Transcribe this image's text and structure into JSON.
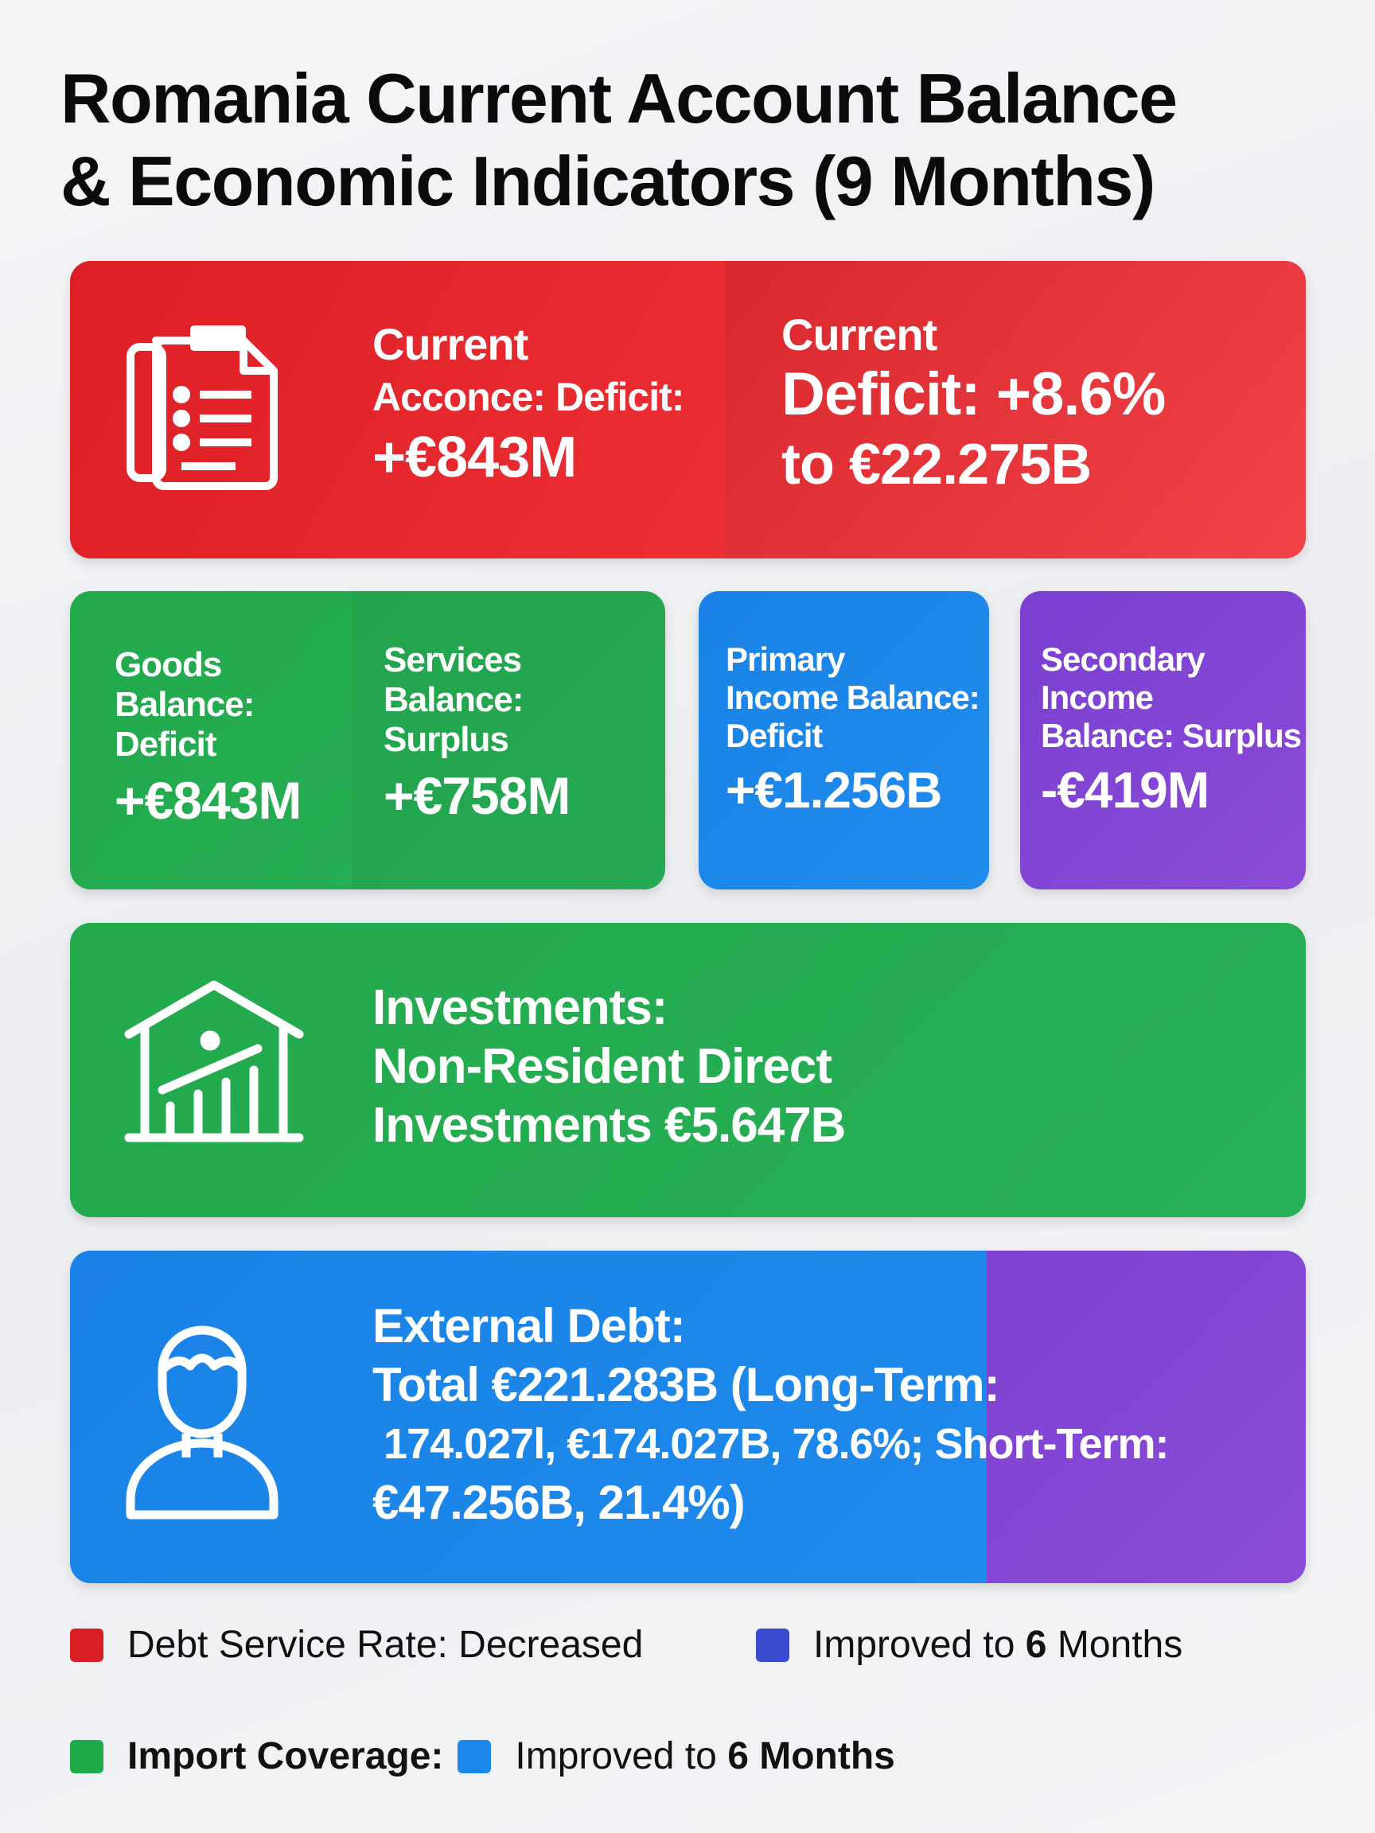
{
  "title": {
    "line1": "Romania Current Account Balance",
    "line2": "& Economic Indicators (9 Months)"
  },
  "current_account": {
    "label1": "Current",
    "label2": "Acconce: Deficit:",
    "value": "+€843M",
    "icon": "document-list-icon"
  },
  "current_deficit": {
    "label1": "Current",
    "line2": "Deficit: +8.6%",
    "line3": "to €22.275B"
  },
  "goods": {
    "l1": "Goods",
    "l2": "Balance:",
    "l3": "Deficit",
    "value": "+€843M"
  },
  "services": {
    "l1": "Services",
    "l2": "Balance:",
    "l3": "Surplus",
    "value": "+€758M"
  },
  "primary": {
    "l1": "Primary",
    "l2": "Income Balance:",
    "l3": "Deficit",
    "value": "+€1.256B"
  },
  "secondary": {
    "l1": "Secondary",
    "l2": "Income",
    "l3": "Balance: Surplus",
    "value": "-€419M"
  },
  "investments": {
    "l1": "Investments:",
    "l2": "Non-Resident Direct",
    "l3": "Investments €5.647B",
    "icon": "house-chart-icon"
  },
  "external_debt": {
    "l1": "External Debt:",
    "l2": "Total €221.283B (Long-Term:",
    "l3": " 174.027l, €174.027B, 78.6%; Short-Term:",
    "l4": "€47.256B, 21.4%)",
    "icon": "person-icon"
  },
  "legend": {
    "debt_service": "Debt Service Rate: Decreased",
    "improved_a_pre": "Improved to ",
    "improved_a_num": "6",
    "improved_a_post": " Months",
    "import_coverage": "Import Coverage:",
    "improved_b_pre": "Improved to ",
    "improved_b_num": "6 Months"
  },
  "colors": {
    "red": "#e02a2f",
    "green": "#25ad52",
    "blue": "#1c87ea",
    "purple": "#8446d4",
    "legend_indigo": "#3b4bd0"
  }
}
